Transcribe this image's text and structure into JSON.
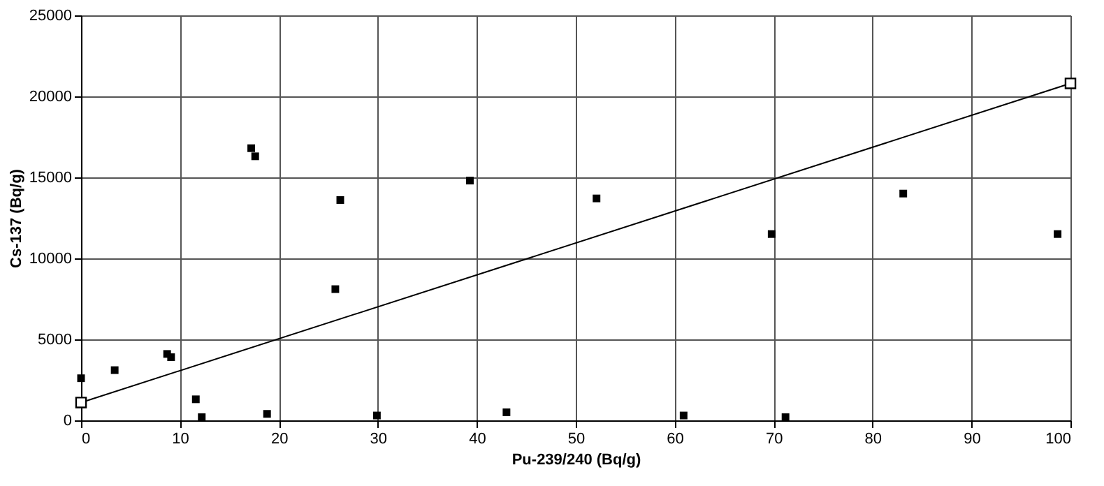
{
  "chart_data": {
    "type": "scatter",
    "xlabel": "Pu-239/240 (Bq/g)",
    "ylabel": "Cs-137 (Bq/g)",
    "xlim": [
      0,
      100
    ],
    "ylim": [
      0,
      25000
    ],
    "xticks": [
      0,
      10,
      20,
      30,
      40,
      50,
      60,
      70,
      80,
      90,
      100
    ],
    "yticks": [
      0,
      5000,
      10000,
      15000,
      20000,
      25000
    ],
    "grid": true,
    "legend": false,
    "marker": "square",
    "series": [
      {
        "color": "#000000",
        "x": [
          0,
          3.4,
          8.7,
          9.1,
          11.6,
          12.2,
          17.2,
          17.6,
          18.8,
          25.7,
          26.2,
          29.9,
          39.3,
          43.0,
          52.1,
          60.9,
          69.8,
          71.2,
          83.1,
          98.7
        ],
        "values": [
          2600,
          3100,
          4100,
          3900,
          1300,
          200,
          16800,
          16300,
          400,
          8100,
          13600,
          300,
          14800,
          500,
          13700,
          300,
          11500,
          200,
          14000,
          11500
        ]
      },
      {
        "type": "line",
        "color": "#000000",
        "x": [
          0,
          100
        ],
        "values": [
          1100,
          20800
        ]
      }
    ]
  }
}
